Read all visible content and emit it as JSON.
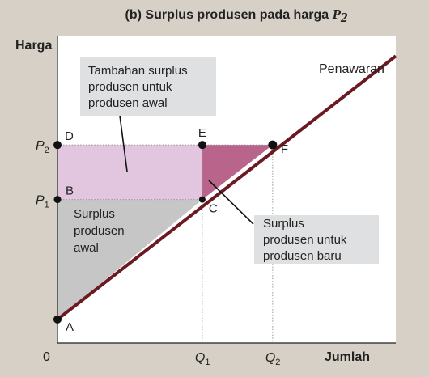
{
  "chart_data": {
    "type": "line",
    "title_prefix": "(b) Surplus produsen pada harga ",
    "title_var": "P",
    "title_sub": "2",
    "ylabel": "Harga",
    "xlabel": "Jumlah",
    "origin_label": "0",
    "xlim": [
      0,
      10
    ],
    "ylim": [
      0,
      10
    ],
    "supply": {
      "name": "Penawaran",
      "x": [
        0,
        10
      ],
      "y": [
        0.77,
        9.36
      ]
    },
    "x_ticks": [
      {
        "main": "Q",
        "sub": "1",
        "x": 4.28
      },
      {
        "main": "Q",
        "sub": "2",
        "x": 6.36
      }
    ],
    "y_ticks": [
      {
        "main": "P",
        "sub": "2",
        "y": 6.46
      },
      {
        "main": "P",
        "sub": "1",
        "y": 4.68
      }
    ],
    "points": [
      {
        "label": "A",
        "x": 0,
        "y": 0.77
      },
      {
        "label": "B",
        "x": 0,
        "y": 4.68
      },
      {
        "label": "C",
        "x": 4.28,
        "y": 4.68
      },
      {
        "label": "D",
        "x": 0,
        "y": 6.46
      },
      {
        "label": "E",
        "x": 4.28,
        "y": 6.46
      },
      {
        "label": "F",
        "x": 6.36,
        "y": 6.46
      }
    ],
    "regions": [
      {
        "name": "surplus-awal",
        "label_lines": [
          "Surplus",
          "produsen",
          "awal"
        ],
        "color": "#c6c6c6"
      },
      {
        "name": "tambahan",
        "label_lines": [
          "Tambahan surplus",
          "produsen untuk",
          "produsen awal"
        ],
        "color": "#e2c5de"
      },
      {
        "name": "baru",
        "label_lines": [
          "Surplus",
          "produsen untuk",
          "produsen baru"
        ],
        "color": "#b9648b"
      }
    ],
    "colors": {
      "supply_line": "#6b1a22",
      "plot_bg": "#ffffff",
      "page_bg": "#d6d0c6",
      "callout_bg": "#dfe0e2"
    }
  }
}
